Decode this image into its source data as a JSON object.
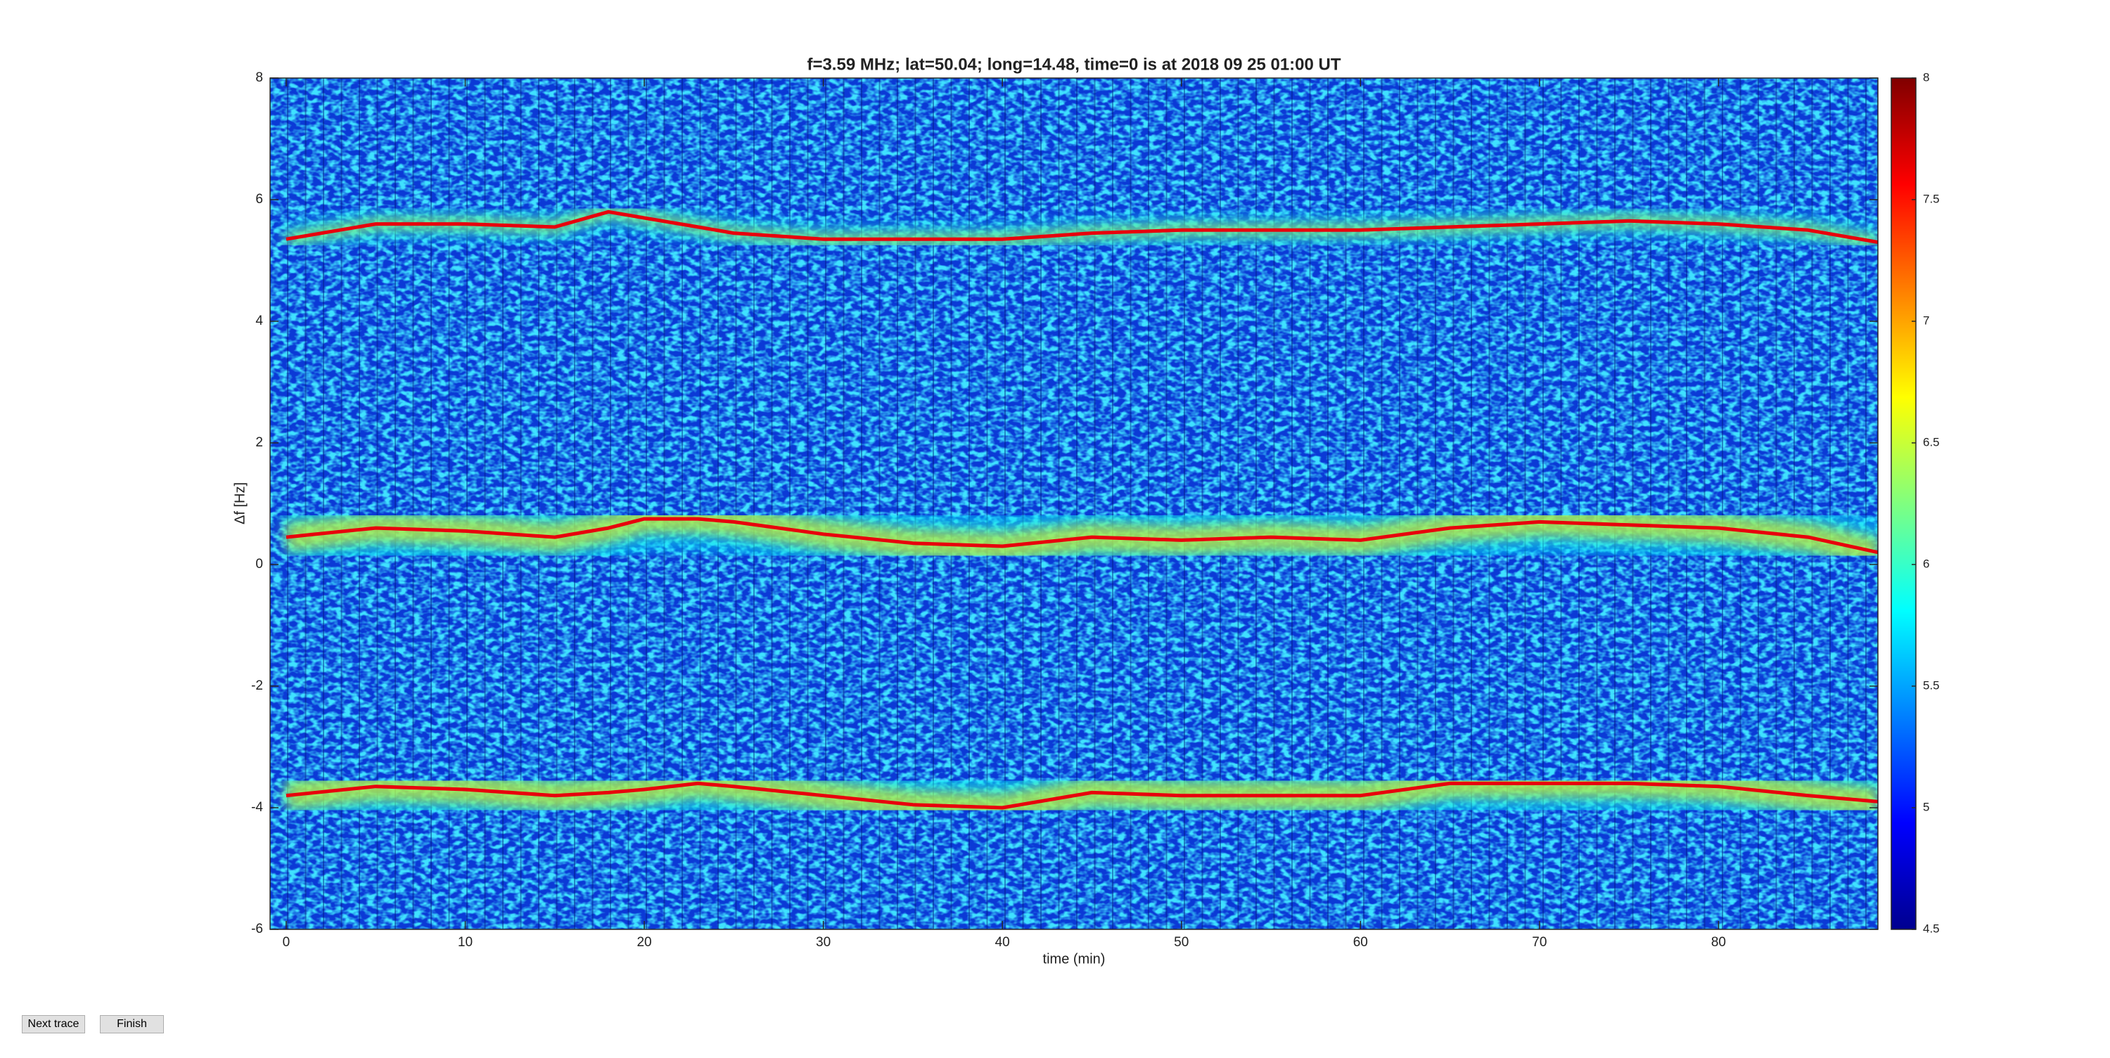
{
  "chart_data": {
    "type": "heatmap",
    "title": "f=3.59 MHz;  lat=50.04; long=14.48, time=0 is at 2018 09 25 01:00 UT",
    "x_label": "time (min)",
    "y_label": "Δf [Hz]",
    "xlim": [
      -0.9,
      88.9
    ],
    "xticks": [
      0,
      10,
      20,
      30,
      40,
      50,
      60,
      70,
      80
    ],
    "ylim": [
      -6,
      8
    ],
    "yticks": [
      -6,
      -4,
      -2,
      0,
      2,
      4,
      6,
      8
    ],
    "clim": [
      4.5,
      8
    ],
    "cticks": [
      4.5,
      5,
      5.5,
      6,
      6.5,
      7,
      7.5,
      8
    ],
    "colormap": "jet",
    "x": [
      0,
      5,
      10,
      15,
      18,
      20,
      23,
      25,
      30,
      35,
      40,
      45,
      50,
      55,
      60,
      65,
      70,
      75,
      80,
      85,
      88.9
    ],
    "series": [
      {
        "color": "#e8000c",
        "values": [
          5.35,
          5.6,
          5.6,
          5.55,
          5.8,
          5.7,
          5.55,
          5.45,
          5.35,
          5.35,
          5.35,
          5.45,
          5.5,
          5.5,
          5.5,
          5.55,
          5.6,
          5.65,
          5.6,
          5.5,
          5.3
        ]
      },
      {
        "color": "#e8000c",
        "values": [
          0.45,
          0.6,
          0.55,
          0.45,
          0.6,
          0.75,
          0.75,
          0.7,
          0.5,
          0.35,
          0.3,
          0.45,
          0.4,
          0.45,
          0.4,
          0.6,
          0.7,
          0.65,
          0.6,
          0.45,
          0.2
        ]
      },
      {
        "color": "#e8000c",
        "values": [
          -3.8,
          -3.65,
          -3.7,
          -3.8,
          -3.75,
          -3.7,
          -3.6,
          -3.65,
          -3.8,
          -3.95,
          -4.0,
          -3.75,
          -3.8,
          -3.8,
          -3.8,
          -3.6,
          -3.6,
          -3.6,
          -3.65,
          -3.8,
          -3.9
        ]
      }
    ]
  },
  "buttons": [
    "Next trace",
    "Finish"
  ]
}
